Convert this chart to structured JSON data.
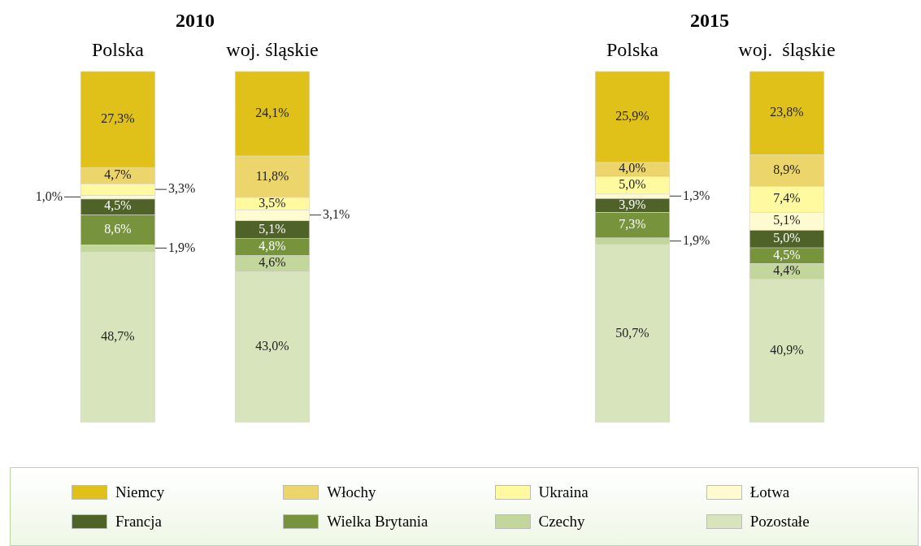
{
  "chart_data": [
    {
      "type": "bar",
      "title": "2010",
      "stacked": true,
      "legend": "bottom",
      "categories": [
        "Polska",
        "woj. śląskie"
      ],
      "series": [
        {
          "name": "Pozostałe",
          "color": "#d8e4bc",
          "values": [
            48.7,
            43.0
          ],
          "value_labels": [
            "48,7%",
            "43,0%"
          ]
        },
        {
          "name": "Czechy",
          "color": "#c3d69b",
          "values": [
            1.9,
            4.6
          ],
          "value_labels": [
            "1,9%",
            "4,6%"
          ]
        },
        {
          "name": "Wielka Brytania",
          "color": "#77933c",
          "values": [
            8.6,
            4.8
          ],
          "value_labels": [
            "8,6%",
            "4,8%"
          ]
        },
        {
          "name": "Francja",
          "color": "#4f6228",
          "values": [
            4.5,
            5.1
          ],
          "value_labels": [
            "4,5%",
            "5,1%"
          ]
        },
        {
          "name": "Łotwa",
          "color": "#fffbd0",
          "values": [
            1.0,
            3.1
          ],
          "value_labels": [
            "1,0%",
            "3,1%"
          ]
        },
        {
          "name": "Ukraina",
          "color": "#fffaa0",
          "values": [
            3.3,
            3.5
          ],
          "value_labels": [
            "3,3%",
            "3,5%"
          ]
        },
        {
          "name": "Włochy",
          "color": "#ecd56a",
          "values": [
            4.7,
            11.8
          ],
          "value_labels": [
            "4,7%",
            "11,8%"
          ]
        },
        {
          "name": "Niemcy",
          "color": "#dfc11a",
          "values": [
            27.3,
            24.1
          ],
          "value_labels": [
            "27,3%",
            "24,1%"
          ]
        }
      ]
    },
    {
      "type": "bar",
      "title": "2015",
      "stacked": true,
      "categories": [
        "Polska",
        "woj.  śląskie"
      ],
      "series": [
        {
          "color": "#d8e4bc",
          "values": [
            50.7,
            40.9
          ],
          "value_labels": [
            "50,7%",
            "40,9%"
          ]
        },
        {
          "color": "#c3d69b",
          "values": [
            1.9,
            4.4
          ],
          "value_labels": [
            "1,9%",
            "4,4%"
          ]
        },
        {
          "color": "#77933c",
          "values": [
            7.3,
            4.5
          ],
          "value_labels": [
            "7,3%",
            "4,5%"
          ]
        },
        {
          "color": "#4f6228",
          "values": [
            3.9,
            5.0
          ],
          "value_labels": [
            "3,9%",
            "5,0%"
          ]
        },
        {
          "color": "#fffbd0",
          "values": [
            1.3,
            5.1
          ],
          "value_labels": [
            "1,3%",
            "5,1%"
          ]
        },
        {
          "color": "#fffaa0",
          "values": [
            5.0,
            7.4
          ],
          "value_labels": [
            "5,0%",
            "7,4%"
          ]
        },
        {
          "color": "#ecd56a",
          "values": [
            4.0,
            8.9
          ],
          "value_labels": [
            "4,0%",
            "8,9%"
          ]
        },
        {
          "color": "#dfc11a",
          "values": [
            25.9,
            23.8
          ],
          "value_labels": [
            "25,9%",
            "23,8%"
          ]
        }
      ]
    }
  ]
}
